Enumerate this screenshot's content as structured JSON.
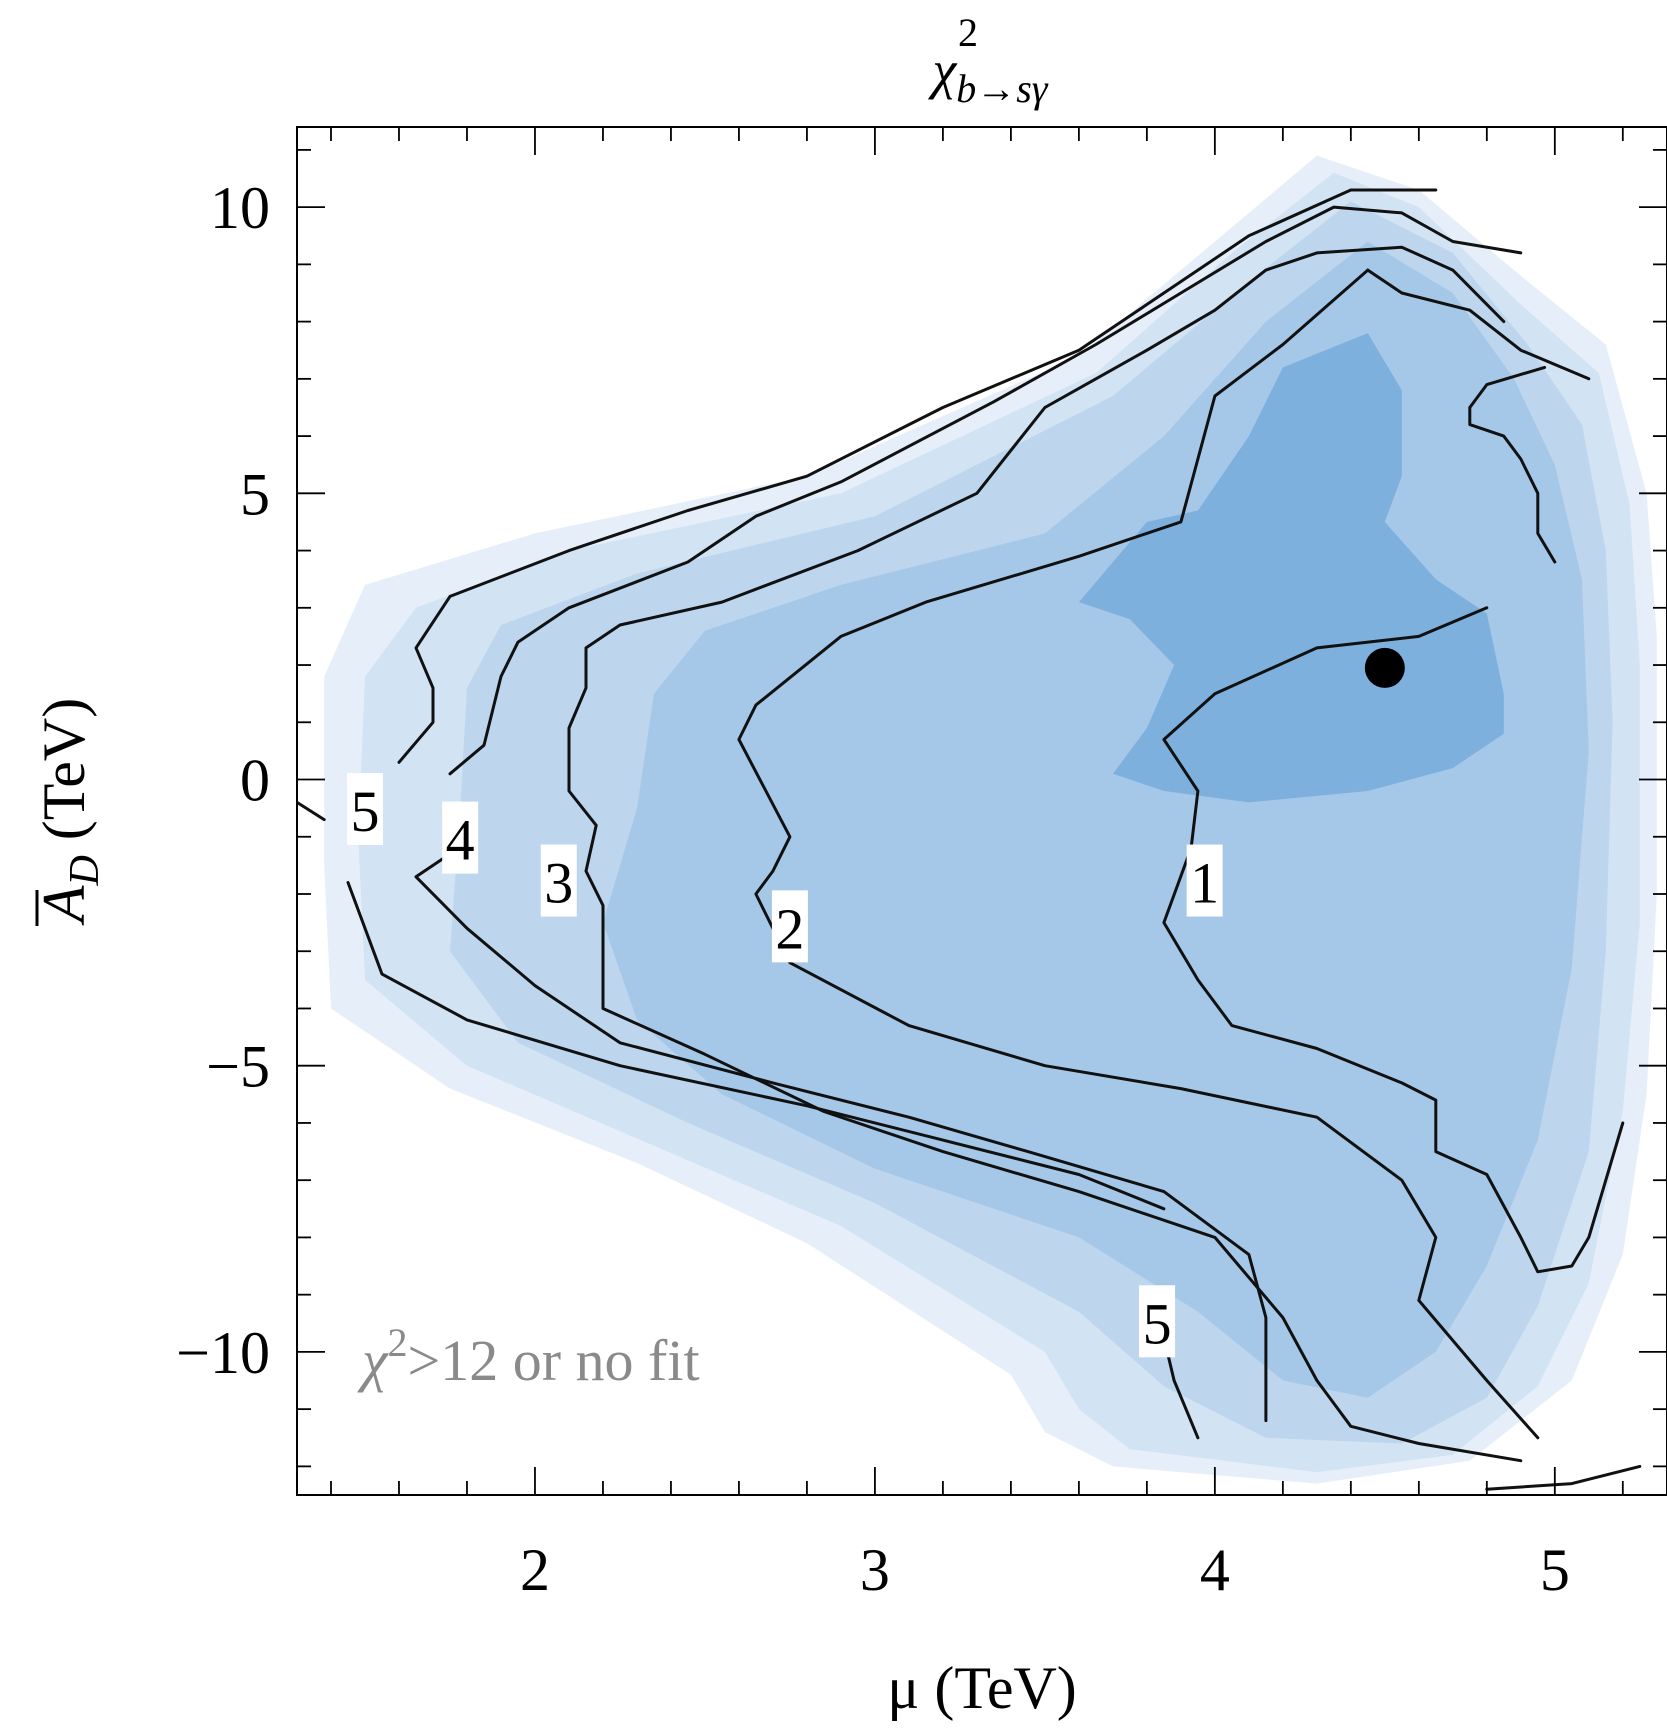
{
  "chart_data": {
    "type": "contour",
    "title": {
      "symbol": "χ",
      "superscript": "2",
      "subscript": "b→sγ"
    },
    "xlabel": "μ (TeV)",
    "ylabel": {
      "symbol": "A",
      "subscript": "D",
      "unit": " (TeV)"
    },
    "xlim": [
      1.3,
      5.33
    ],
    "ylim": [
      -12.5,
      11.4
    ],
    "xticks": [
      2,
      3,
      4,
      5
    ],
    "xtick_labels": [
      "2",
      "3",
      "4",
      "5"
    ],
    "yticks": [
      -10,
      -5,
      0,
      5,
      10
    ],
    "ytick_labels": [
      "−10",
      "−5",
      "0",
      "5",
      "10"
    ],
    "x_minor_step": 0.2,
    "y_minor_step": 1,
    "fill_colors": [
      "#e6eff9",
      "#d2e3f4",
      "#bdd6ee",
      "#a6c8e8",
      "#7eb0de"
    ],
    "contour_color": "#111111",
    "region_note": {
      "symbol": "χ",
      "superscript": "2",
      "text": ">12 or no fit",
      "color": "#8a8a8a"
    },
    "best_fit_point": {
      "x": 4.5,
      "y": 1.95
    },
    "contour_levels": [
      {
        "level": 1,
        "label": "1",
        "label_pos": {
          "x": 3.97,
          "y": -1.8
        },
        "segments": [
          [
            [
              5.0,
              3.8
            ],
            [
              4.95,
              4.3
            ],
            [
              4.95,
              5.0
            ],
            [
              4.9,
              5.6
            ],
            [
              4.85,
              6.0
            ],
            [
              4.75,
              6.2
            ],
            [
              4.75,
              6.5
            ],
            [
              4.8,
              6.9
            ],
            [
              4.97,
              7.2
            ]
          ],
          [
            [
              4.8,
              3.0
            ],
            [
              4.6,
              2.5
            ],
            [
              4.3,
              2.3
            ],
            [
              4.0,
              1.5
            ],
            [
              3.85,
              0.7
            ],
            [
              3.95,
              -0.2
            ],
            [
              3.93,
              -1.2
            ],
            [
              3.85,
              -2.5
            ],
            [
              3.95,
              -3.5
            ],
            [
              4.05,
              -4.3
            ],
            [
              4.3,
              -4.7
            ],
            [
              4.55,
              -5.3
            ],
            [
              4.65,
              -5.6
            ],
            [
              4.65,
              -6.5
            ],
            [
              4.8,
              -6.9
            ],
            [
              4.9,
              -8.0
            ],
            [
              4.95,
              -8.6
            ],
            [
              5.05,
              -8.5
            ],
            [
              5.1,
              -8.0
            ],
            [
              5.15,
              -7.0
            ],
            [
              5.2,
              -6.0
            ]
          ]
        ]
      },
      {
        "level": 2,
        "label": "2",
        "label_pos": {
          "x": 2.75,
          "y": -2.6
        },
        "segments": [
          [
            [
              5.1,
              7.0
            ],
            [
              4.9,
              7.5
            ],
            [
              4.75,
              8.2
            ],
            [
              4.55,
              8.5
            ],
            [
              4.45,
              8.9
            ]
          ],
          [
            [
              4.45,
              8.9
            ],
            [
              4.2,
              7.6
            ],
            [
              4.0,
              6.7
            ],
            [
              3.9,
              4.5
            ],
            [
              3.6,
              3.9
            ],
            [
              3.15,
              3.1
            ],
            [
              2.9,
              2.5
            ],
            [
              2.65,
              1.3
            ],
            [
              2.6,
              0.7
            ],
            [
              2.75,
              -1.0
            ],
            [
              2.7,
              -1.6
            ],
            [
              2.65,
              -2.0
            ],
            [
              2.75,
              -3.2
            ],
            [
              3.1,
              -4.3
            ],
            [
              3.5,
              -5.0
            ],
            [
              3.9,
              -5.4
            ],
            [
              4.3,
              -5.9
            ],
            [
              4.55,
              -7.0
            ],
            [
              4.65,
              -8.0
            ],
            [
              4.6,
              -9.1
            ],
            [
              4.8,
              -10.5
            ],
            [
              4.95,
              -11.5
            ]
          ]
        ]
      },
      {
        "level": 3,
        "label": "3",
        "label_pos": {
          "x": 2.07,
          "y": -1.8
        },
        "segments": [
          [
            [
              4.85,
              8.0
            ],
            [
              4.7,
              8.9
            ],
            [
              4.55,
              9.3
            ],
            [
              4.3,
              9.2
            ],
            [
              4.15,
              8.9
            ],
            [
              4.0,
              8.2
            ],
            [
              3.8,
              7.5
            ],
            [
              3.5,
              6.5
            ],
            [
              3.3,
              5.0
            ],
            [
              2.95,
              4.0
            ],
            [
              2.55,
              3.1
            ],
            [
              2.25,
              2.7
            ],
            [
              2.15,
              2.3
            ],
            [
              2.15,
              1.6
            ],
            [
              2.1,
              0.9
            ],
            [
              2.1,
              -0.2
            ],
            [
              2.18,
              -0.8
            ],
            [
              2.15,
              -1.6
            ],
            [
              2.2,
              -2.2
            ],
            [
              2.2,
              -4.0
            ],
            [
              2.5,
              -4.8
            ],
            [
              2.85,
              -5.8
            ],
            [
              3.2,
              -6.5
            ],
            [
              3.6,
              -7.2
            ],
            [
              4.0,
              -8.0
            ],
            [
              4.2,
              -9.4
            ],
            [
              4.3,
              -10.5
            ],
            [
              4.4,
              -11.3
            ],
            [
              4.6,
              -11.6
            ],
            [
              4.9,
              -11.9
            ]
          ]
        ]
      },
      {
        "level": 4,
        "label": "4",
        "label_pos": {
          "x": 1.78,
          "y": -1.05
        },
        "segments": [
          [
            [
              4.9,
              9.2
            ],
            [
              4.7,
              9.4
            ],
            [
              4.55,
              9.9
            ],
            [
              4.35,
              10.0
            ],
            [
              4.15,
              9.4
            ],
            [
              3.9,
              8.5
            ],
            [
              3.65,
              7.6
            ],
            [
              3.35,
              6.6
            ],
            [
              2.9,
              5.2
            ],
            [
              2.65,
              4.6
            ],
            [
              2.45,
              3.8
            ],
            [
              2.1,
              3.0
            ],
            [
              1.95,
              2.4
            ],
            [
              1.9,
              1.8
            ],
            [
              1.85,
              0.6
            ],
            [
              1.75,
              0.1
            ]
          ],
          [
            [
              1.8,
              -1.1
            ],
            [
              1.65,
              -1.7
            ],
            [
              1.8,
              -2.6
            ],
            [
              2.0,
              -3.6
            ],
            [
              2.25,
              -4.6
            ],
            [
              2.7,
              -5.3
            ],
            [
              3.1,
              -5.9
            ],
            [
              3.45,
              -6.5
            ],
            [
              3.85,
              -7.2
            ],
            [
              4.1,
              -8.3
            ],
            [
              4.15,
              -9.4
            ],
            [
              4.15,
              -11.2
            ]
          ]
        ]
      },
      {
        "level": 5,
        "label": "5",
        "label_pos": {
          "x": 1.5,
          "y": -0.55
        },
        "segments": [
          [
            [
              4.65,
              10.3
            ],
            [
              4.4,
              10.3
            ],
            [
              4.1,
              9.5
            ],
            [
              3.85,
              8.5
            ],
            [
              3.6,
              7.5
            ],
            [
              3.2,
              6.5
            ],
            [
              2.8,
              5.3
            ],
            [
              2.45,
              4.7
            ],
            [
              2.1,
              4.0
            ],
            [
              1.75,
              3.2
            ],
            [
              1.65,
              2.3
            ],
            [
              1.7,
              1.6
            ],
            [
              1.7,
              1.0
            ],
            [
              1.6,
              0.3
            ]
          ],
          [
            [
              1.45,
              -1.8
            ],
            [
              1.55,
              -3.4
            ],
            [
              1.8,
              -4.2
            ],
            [
              2.25,
              -5.0
            ],
            [
              2.8,
              -5.7
            ],
            [
              3.2,
              -6.3
            ],
            [
              3.6,
              -6.9
            ],
            [
              3.85,
              -7.5
            ]
          ],
          [
            [
              1.3,
              -0.4
            ],
            [
              1.38,
              -0.7
            ]
          ],
          [
            [
              3.95,
              -11.5
            ],
            [
              3.88,
              -10.5
            ],
            [
              3.82,
              -9.0
            ]
          ],
          [
            [
              5.25,
              -12.0
            ],
            [
              5.05,
              -12.3
            ],
            [
              4.8,
              -12.4
            ]
          ]
        ]
      },
      {
        "level": 5,
        "label": "5",
        "label_pos": {
          "x": 3.83,
          "y": -9.5
        },
        "segments": []
      }
    ],
    "regions": [
      {
        "level": 0,
        "points": [
          [
            4.3,
            10.9
          ],
          [
            4.6,
            10.3
          ],
          [
            4.9,
            8.8
          ],
          [
            5.15,
            7.6
          ],
          [
            5.27,
            5.0
          ],
          [
            5.3,
            2.5
          ],
          [
            5.3,
            -2.0
          ],
          [
            5.27,
            -5.5
          ],
          [
            5.2,
            -8.3
          ],
          [
            5.05,
            -10.5
          ],
          [
            4.75,
            -11.9
          ],
          [
            4.3,
            -12.3
          ],
          [
            3.7,
            -12.0
          ],
          [
            3.5,
            -11.4
          ],
          [
            3.4,
            -10.4
          ],
          [
            2.8,
            -8.1
          ],
          [
            2.3,
            -6.7
          ],
          [
            1.75,
            -5.4
          ],
          [
            1.4,
            -4.0
          ],
          [
            1.38,
            -1.5
          ],
          [
            1.38,
            1.8
          ],
          [
            1.5,
            3.4
          ],
          [
            2.0,
            4.3
          ],
          [
            2.8,
            5.3
          ],
          [
            3.6,
            7.4
          ],
          [
            4.0,
            9.4
          ]
        ]
      },
      {
        "level": 1,
        "points": [
          [
            4.35,
            10.6
          ],
          [
            4.6,
            10.0
          ],
          [
            4.9,
            8.3
          ],
          [
            5.13,
            7.1
          ],
          [
            5.22,
            4.8
          ],
          [
            5.25,
            2.0
          ],
          [
            5.25,
            -2.5
          ],
          [
            5.2,
            -5.8
          ],
          [
            5.1,
            -8.8
          ],
          [
            4.95,
            -10.6
          ],
          [
            4.7,
            -11.8
          ],
          [
            4.3,
            -12.1
          ],
          [
            3.75,
            -11.7
          ],
          [
            3.6,
            -11.0
          ],
          [
            3.5,
            -10.0
          ],
          [
            2.9,
            -7.8
          ],
          [
            2.35,
            -6.4
          ],
          [
            1.8,
            -5.0
          ],
          [
            1.5,
            -3.5
          ],
          [
            1.48,
            -1.0
          ],
          [
            1.5,
            1.8
          ],
          [
            1.65,
            3.0
          ],
          [
            2.1,
            4.0
          ],
          [
            2.9,
            5.0
          ],
          [
            3.65,
            7.1
          ],
          [
            4.05,
            9.2
          ]
        ]
      },
      {
        "level": 2,
        "points": [
          [
            4.4,
            10.1
          ],
          [
            4.7,
            9.2
          ],
          [
            4.92,
            7.6
          ],
          [
            5.08,
            6.2
          ],
          [
            5.15,
            4.0
          ],
          [
            5.17,
            1.0
          ],
          [
            5.15,
            -3.0
          ],
          [
            5.1,
            -6.5
          ],
          [
            4.95,
            -9.2
          ],
          [
            4.8,
            -10.8
          ],
          [
            4.55,
            -11.6
          ],
          [
            4.15,
            -11.5
          ],
          [
            3.85,
            -10.6
          ],
          [
            3.6,
            -9.3
          ],
          [
            3.0,
            -7.4
          ],
          [
            2.45,
            -6.0
          ],
          [
            1.95,
            -4.6
          ],
          [
            1.75,
            -3.0
          ],
          [
            1.78,
            -0.5
          ],
          [
            1.8,
            1.6
          ],
          [
            1.9,
            2.7
          ],
          [
            2.3,
            3.6
          ],
          [
            3.0,
            4.6
          ],
          [
            3.7,
            6.7
          ],
          [
            4.1,
            8.7
          ]
        ]
      },
      {
        "level": 3,
        "points": [
          [
            4.45,
            9.4
          ],
          [
            4.7,
            8.5
          ],
          [
            4.88,
            7.0
          ],
          [
            5.0,
            5.5
          ],
          [
            5.08,
            3.5
          ],
          [
            5.1,
            0.5
          ],
          [
            5.05,
            -3.3
          ],
          [
            4.95,
            -6.3
          ],
          [
            4.8,
            -8.5
          ],
          [
            4.65,
            -10.0
          ],
          [
            4.45,
            -10.8
          ],
          [
            4.2,
            -10.5
          ],
          [
            3.95,
            -9.3
          ],
          [
            3.6,
            -8.0
          ],
          [
            3.0,
            -6.8
          ],
          [
            2.55,
            -5.5
          ],
          [
            2.3,
            -4.2
          ],
          [
            2.2,
            -2.5
          ],
          [
            2.3,
            -0.5
          ],
          [
            2.35,
            1.5
          ],
          [
            2.5,
            2.6
          ],
          [
            2.9,
            3.4
          ],
          [
            3.5,
            4.3
          ],
          [
            3.85,
            6.0
          ],
          [
            4.15,
            8.0
          ]
        ]
      },
      {
        "level": 4,
        "points": [
          [
            4.45,
            7.8
          ],
          [
            4.55,
            6.8
          ],
          [
            4.55,
            5.3
          ],
          [
            4.5,
            4.5
          ],
          [
            4.65,
            3.5
          ],
          [
            4.8,
            2.9
          ],
          [
            4.85,
            1.5
          ],
          [
            4.85,
            0.8
          ],
          [
            4.7,
            0.2
          ],
          [
            4.45,
            -0.2
          ],
          [
            4.1,
            -0.4
          ],
          [
            3.85,
            -0.2
          ],
          [
            3.7,
            0.1
          ],
          [
            3.8,
            0.9
          ],
          [
            3.88,
            2.0
          ],
          [
            3.75,
            2.8
          ],
          [
            3.6,
            3.1
          ],
          [
            3.8,
            4.5
          ],
          [
            3.95,
            4.7
          ],
          [
            4.1,
            6.0
          ],
          [
            4.2,
            7.2
          ]
        ]
      }
    ]
  }
}
